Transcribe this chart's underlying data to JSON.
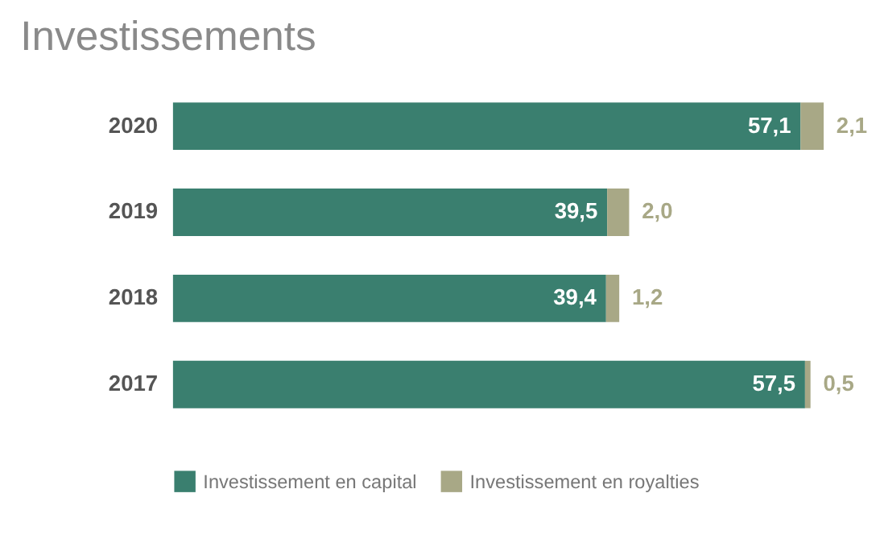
{
  "chart_data": {
    "type": "bar",
    "title": "Investissements",
    "orientation": "horizontal",
    "stacked": true,
    "legend": "bottom",
    "tick_labels": "y",
    "grid": false,
    "categories": [
      "2020",
      "2019",
      "2018",
      "2017"
    ],
    "series": [
      {
        "name": "Investissement en capital",
        "color": "#3a7f6f",
        "values": [
          57.1,
          39.5,
          39.4,
          57.5
        ],
        "value_labels": [
          "57,1",
          "39,5",
          "39,4",
          "57,5"
        ]
      },
      {
        "name": "Investissement en royalties",
        "color": "#a8a886",
        "values": [
          2.1,
          2.0,
          1.2,
          0.5
        ],
        "value_labels": [
          "2,1",
          "2,0",
          "1,2",
          "0,5"
        ]
      }
    ]
  }
}
